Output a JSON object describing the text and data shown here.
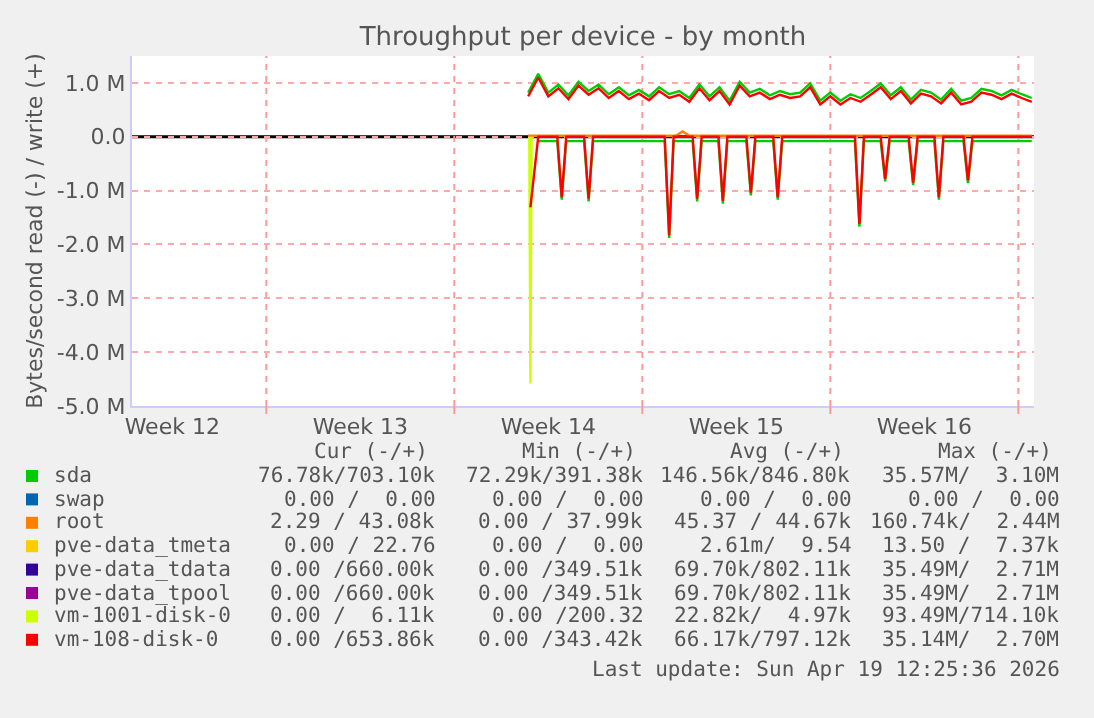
{
  "chart_data": {
    "type": "line",
    "title": "Throughput per device - by month",
    "ylabel": "Bytes/second read (-) / write (+)",
    "xlim": [
      "2026-03-17T00:00",
      "2026-04-19T14:00"
    ],
    "xticks": [
      {
        "value": "2026-03-18T12:00",
        "label": "Week 12"
      },
      {
        "value": "2026-03-22",
        "label": null
      },
      {
        "value": "2026-03-25T12:00",
        "label": "Week 13"
      },
      {
        "value": "2026-03-29",
        "label": null
      },
      {
        "value": "2026-04-01T12:00",
        "label": "Week 14"
      },
      {
        "value": "2026-04-05",
        "label": null
      },
      {
        "value": "2026-04-08T12:00",
        "label": "Week 15"
      },
      {
        "value": "2026-04-12",
        "label": null
      },
      {
        "value": "2026-04-15T12:00",
        "label": "Week 16"
      },
      {
        "value": "2026-04-19",
        "label": null
      }
    ],
    "ylim": [
      -5,
      1.5
    ],
    "yticks": [
      {
        "value": -5,
        "label": "-5.0 M"
      },
      {
        "value": -4,
        "label": "-4.0 M"
      },
      {
        "value": -3,
        "label": "-3.0 M"
      },
      {
        "value": -2,
        "label": "-2.0 M"
      },
      {
        "value": -1,
        "label": "-1.0 M"
      },
      {
        "value": 0,
        "label": "0.0"
      },
      {
        "value": 1,
        "label": "1.0 M"
      }
    ],
    "grid": true,
    "legend": "bottom",
    "marker": "none",
    "line_style": "solid",
    "ref_lines": [
      {
        "axis": "y",
        "value": 0,
        "label": null,
        "color": "#000000"
      }
    ],
    "series": [
      {
        "name": "sda",
        "color": "#00cc00",
        "x": [
          "2026-03-31T18:00",
          "2026-04-01T03:00",
          "2026-04-01T12:00",
          "2026-04-01T21:00",
          "2026-04-02T06:00",
          "2026-04-02T15:00",
          "2026-04-03T00:00",
          "2026-04-03T09:00",
          "2026-04-03T18:00",
          "2026-04-04T03:00",
          "2026-04-04T12:00",
          "2026-04-04T21:00",
          "2026-04-05T06:00",
          "2026-04-05T15:00",
          "2026-04-06T00:00",
          "2026-04-06T09:00",
          "2026-04-06T18:00",
          "2026-04-07T03:00",
          "2026-04-07T12:00",
          "2026-04-07T21:00",
          "2026-04-08T06:00",
          "2026-04-08T15:00",
          "2026-04-09T00:00",
          "2026-04-09T09:00",
          "2026-04-09T18:00",
          "2026-04-10T03:00",
          "2026-04-10T12:00",
          "2026-04-10T21:00",
          "2026-04-11T06:00",
          "2026-04-11T15:00",
          "2026-04-12T00:00",
          "2026-04-12T09:00",
          "2026-04-12T18:00",
          "2026-04-13T03:00",
          "2026-04-13T12:00",
          "2026-04-13T21:00",
          "2026-04-14T06:00",
          "2026-04-14T15:00",
          "2026-04-15T00:00",
          "2026-04-15T09:00",
          "2026-04-15T18:00",
          "2026-04-16T03:00",
          "2026-04-16T12:00",
          "2026-04-16T21:00",
          "2026-04-17T06:00",
          "2026-04-17T15:00",
          "2026-04-18T00:00",
          "2026-04-18T09:00",
          "2026-04-18T18:00",
          "2026-04-19T03:00",
          "2026-04-19T12:00"
        ],
        "values": [
          0.82,
          1.17,
          0.82,
          0.97,
          0.77,
          1.02,
          0.85,
          0.97,
          0.79,
          0.92,
          0.77,
          0.87,
          0.75,
          0.92,
          0.79,
          0.85,
          0.72,
          0.97,
          0.75,
          0.92,
          0.67,
          1.02,
          0.82,
          0.89,
          0.77,
          0.85,
          0.79,
          0.82,
          0.99,
          0.67,
          0.82,
          0.67,
          0.79,
          0.72,
          0.85,
          0.99,
          0.77,
          0.92,
          0.69,
          0.87,
          0.82,
          0.69,
          0.89,
          0.67,
          0.72,
          0.89,
          0.85,
          0.77,
          0.87,
          0.79,
          0.72
        ]
      },
      {
        "color": "#00cc00",
        "x": [
          "2026-04-01T03:00",
          "2026-04-01T20:00",
          "2026-04-02T00:00",
          "2026-04-02T04:00",
          "2026-04-02T20:00",
          "2026-04-03T00:00",
          "2026-04-03T04:00",
          "2026-04-05T20:00",
          "2026-04-06T00:00",
          "2026-04-06T04:00",
          "2026-04-06T21:00",
          "2026-04-07T01:00",
          "2026-04-07T05:00",
          "2026-04-07T20:00",
          "2026-04-08T00:00",
          "2026-04-08T04:00",
          "2026-04-08T21:00",
          "2026-04-09T01:00",
          "2026-04-09T05:00",
          "2026-04-09T21:00",
          "2026-04-10T01:00",
          "2026-04-10T05:00",
          "2026-04-12T22:00",
          "2026-04-13T02:00",
          "2026-04-13T06:00",
          "2026-04-13T21:00",
          "2026-04-14T01:00",
          "2026-04-14T05:00",
          "2026-04-14T22:00",
          "2026-04-15T02:00",
          "2026-04-15T06:00",
          "2026-04-15T21:00",
          "2026-04-16T01:00",
          "2026-04-16T05:00",
          "2026-04-16T23:00",
          "2026-04-17T03:00",
          "2026-04-17T07:00",
          "2026-04-19T12:00"
        ],
        "values": [
          -0.08,
          -0.08,
          -1.17,
          -0.08,
          -0.08,
          -1.2,
          -0.08,
          -0.08,
          -1.88,
          -0.08,
          -0.08,
          -1.2,
          -0.08,
          -0.08,
          -1.24,
          -0.08,
          -0.08,
          -1.09,
          -0.08,
          -0.08,
          -1.17,
          -0.08,
          -0.08,
          -1.67,
          -0.08,
          -0.08,
          -0.83,
          -0.08,
          -0.08,
          -0.9,
          -0.08,
          -0.08,
          -1.17,
          -0.08,
          -0.08,
          -0.86,
          -0.08,
          -0.08
        ]
      },
      {
        "name": "swap",
        "color": "#0066b3"
      },
      {
        "name": "root",
        "color": "#ff8000",
        "x": [
          "2026-03-31T18:00",
          "2026-04-06T06:00",
          "2026-04-06T12:00",
          "2026-04-06T18:00",
          "2026-04-19T12:00"
        ],
        "values": [
          0.02,
          0.02,
          0.1,
          0.02,
          0.02
        ]
      },
      {
        "name": "pve-data_tmeta",
        "color": "#ffcc00"
      },
      {
        "name": "pve-data_tdata",
        "color": "#330099"
      },
      {
        "name": "pve-data_tpool",
        "color": "#990099"
      },
      {
        "color": "#ccff00",
        "x": [
          "2026-03-31T19:00",
          "2026-03-31T20:00",
          "2026-03-31T21:00"
        ],
        "values": [
          0,
          -4.58,
          0
        ]
      },
      {
        "name": "vm-1001-disk-0",
        "color": "#ccff00"
      },
      {
        "color": "#ff0000",
        "x": [
          "2026-03-31T20:00",
          "2026-04-01T03:00",
          "2026-04-01T20:00",
          "2026-04-02T00:00",
          "2026-04-02T04:00",
          "2026-04-02T20:00",
          "2026-04-03T00:00",
          "2026-04-03T04:00",
          "2026-04-05T20:00",
          "2026-04-06T00:00",
          "2026-04-06T04:00",
          "2026-04-06T21:00",
          "2026-04-07T01:00",
          "2026-04-07T05:00",
          "2026-04-07T20:00",
          "2026-04-08T00:00",
          "2026-04-08T04:00",
          "2026-04-08T21:00",
          "2026-04-09T01:00",
          "2026-04-09T05:00",
          "2026-04-09T21:00",
          "2026-04-10T01:00",
          "2026-04-10T05:00",
          "2026-04-12T22:00",
          "2026-04-13T02:00",
          "2026-04-13T06:00",
          "2026-04-13T21:00",
          "2026-04-14T01:00",
          "2026-04-14T05:00",
          "2026-04-14T22:00",
          "2026-04-15T02:00",
          "2026-04-15T06:00",
          "2026-04-15T21:00",
          "2026-04-16T01:00",
          "2026-04-16T05:00",
          "2026-04-16T23:00",
          "2026-04-17T03:00",
          "2026-04-17T07:00",
          "2026-04-19T12:00"
        ],
        "values": [
          -1.31,
          0,
          0,
          -1.12,
          0,
          0,
          -1.15,
          0,
          0,
          -1.83,
          0,
          0,
          -1.15,
          0,
          0,
          -1.19,
          0,
          0,
          -1.04,
          0,
          0,
          -1.12,
          0,
          0,
          -1.62,
          0,
          0,
          -0.78,
          0,
          0,
          -0.85,
          0,
          0,
          -1.12,
          0,
          0,
          -0.81,
          0,
          0
        ]
      },
      {
        "name": "vm-108-disk-0",
        "color": "#ff0000",
        "x": [
          "2026-03-31T18:00",
          "2026-04-01T03:00",
          "2026-04-01T12:00",
          "2026-04-01T21:00",
          "2026-04-02T06:00",
          "2026-04-02T15:00",
          "2026-04-03T00:00",
          "2026-04-03T09:00",
          "2026-04-03T18:00",
          "2026-04-04T03:00",
          "2026-04-04T12:00",
          "2026-04-04T21:00",
          "2026-04-05T06:00",
          "2026-04-05T15:00",
          "2026-04-06T00:00",
          "2026-04-06T09:00",
          "2026-04-06T18:00",
          "2026-04-07T03:00",
          "2026-04-07T12:00",
          "2026-04-07T21:00",
          "2026-04-08T06:00",
          "2026-04-08T15:00",
          "2026-04-09T00:00",
          "2026-04-09T09:00",
          "2026-04-09T18:00",
          "2026-04-10T03:00",
          "2026-04-10T12:00",
          "2026-04-10T21:00",
          "2026-04-11T06:00",
          "2026-04-11T15:00",
          "2026-04-12T00:00",
          "2026-04-12T09:00",
          "2026-04-12T18:00",
          "2026-04-13T03:00",
          "2026-04-13T12:00",
          "2026-04-13T21:00",
          "2026-04-14T06:00",
          "2026-04-14T15:00",
          "2026-04-15T00:00",
          "2026-04-15T09:00",
          "2026-04-15T18:00",
          "2026-04-16T03:00",
          "2026-04-16T12:00",
          "2026-04-16T21:00",
          "2026-04-17T06:00",
          "2026-04-17T15:00",
          "2026-04-18T00:00",
          "2026-04-18T09:00",
          "2026-04-18T18:00",
          "2026-04-19T03:00",
          "2026-04-19T12:00"
        ],
        "values": [
          0.75,
          1.1,
          0.75,
          0.9,
          0.7,
          0.95,
          0.78,
          0.9,
          0.72,
          0.85,
          0.7,
          0.8,
          0.68,
          0.85,
          0.72,
          0.78,
          0.65,
          0.9,
          0.68,
          0.85,
          0.6,
          0.95,
          0.75,
          0.82,
          0.7,
          0.78,
          0.72,
          0.75,
          0.92,
          0.6,
          0.75,
          0.6,
          0.72,
          0.65,
          0.78,
          0.92,
          0.7,
          0.85,
          0.62,
          0.8,
          0.75,
          0.62,
          0.82,
          0.6,
          0.65,
          0.82,
          0.78,
          0.7,
          0.8,
          0.72,
          0.65
        ]
      }
    ],
    "annotations": [
      "Cur (-/+)",
      "Min (-/+)",
      "Avg (-/+)",
      "Max (-/+)",
      "76.78k/703.10k",
      "72.29k/391.38k",
      "146.56k/846.80k",
      "35.57M/  3.10M",
      "0.00 /  0.00",
      "0.00 /  0.00",
      "0.00 /  0.00",
      "0.00 /  0.00",
      "2.29 / 43.08k",
      "0.00 / 37.99k",
      "45.37 / 44.67k",
      "160.74k/  2.44M",
      "0.00 / 22.76",
      "0.00 /  0.00",
      "2.61m/  9.54",
      "13.50 /  7.37k",
      "0.00 /660.00k",
      "0.00 /349.51k",
      "69.70k/802.11k",
      "35.49M/  2.71M",
      "0.00 /660.00k",
      "0.00 /349.51k",
      "69.70k/802.11k",
      "35.49M/  2.71M",
      "0.00 /  6.11k",
      "0.00 /200.32",
      "22.82k/  4.97k",
      "93.49M/714.10k",
      "0.00 /653.86k",
      "0.00 /343.42k",
      "66.17k/797.12k",
      "35.14M/  2.70M",
      "Last update: Sun Apr 19 12:25:36 2026"
    ]
  }
}
